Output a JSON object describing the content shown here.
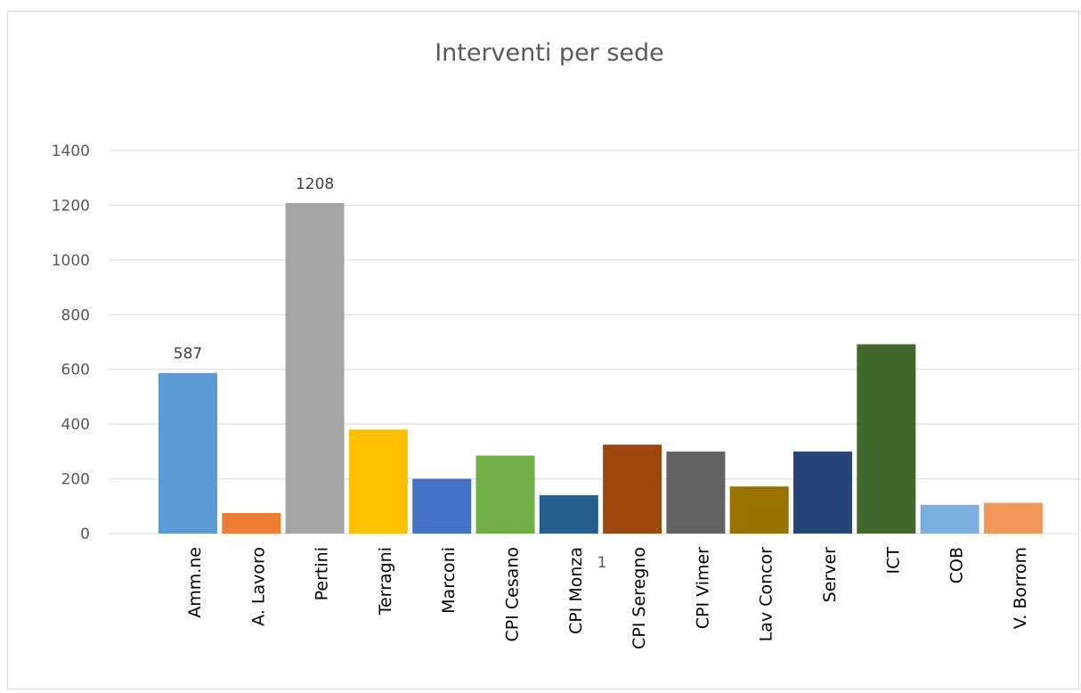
{
  "chart_data": {
    "type": "bar",
    "title": "Interventi per sede",
    "xlabel": "",
    "ylabel": "",
    "ylim": [
      0,
      1400
    ],
    "yticks": [
      0,
      200,
      400,
      600,
      800,
      1000,
      1200,
      1400
    ],
    "grid": true,
    "legend": "bottom",
    "series": [
      {
        "name": "1",
        "values": [
          587,
          75,
          1208,
          380,
          200,
          285,
          140,
          325,
          300,
          172,
          300,
          692,
          105,
          112
        ]
      }
    ],
    "categories": [
      "Amm.ne",
      "A. Lavoro",
      "Pertini",
      "Terragni",
      "Marconi",
      "CPI Cesano",
      "CPI Monza",
      "CPI Seregno",
      "CPI Vimer",
      "Lav Concor",
      "Server",
      "ICT",
      "COB",
      "V. Borrom"
    ],
    "colors": [
      "#5b9bd5",
      "#ed7d31",
      "#a5a5a5",
      "#ffc000",
      "#4472c4",
      "#70ad47",
      "#255e91",
      "#9e480e",
      "#636363",
      "#997300",
      "#264478",
      "#43682b",
      "#7cafdd",
      "#f1975a"
    ],
    "data_labels": [
      {
        "category": "Amm.ne",
        "value": "587"
      },
      {
        "category": "Pertini",
        "value": "1208"
      }
    ]
  }
}
